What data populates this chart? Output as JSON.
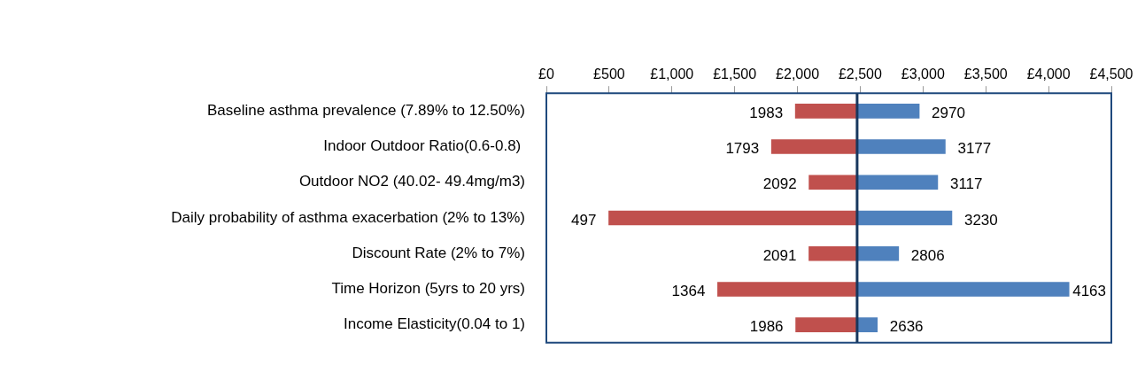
{
  "chart_data": {
    "type": "bar",
    "orientation": "horizontal",
    "categories": [
      "Baseline asthma prevalence (7.89% to 12.50%)",
      "Indoor Outdoor Ratio(0.6-0.8) ",
      "Outdoor NO2 (40.02- 49.4mg/m3)",
      "Daily probability of asthma exacerbation (2% to 13%)",
      "Discount Rate (2% to 7%)",
      "Time Horizon (5yrs to 20 yrs)",
      "Income Elasticity(0.04 to 1)"
    ],
    "series": [
      {
        "color": "#c0504d",
        "base": [
          2475,
          2475,
          2475,
          2475,
          2475,
          2475,
          2475
        ],
        "values": [
          -492,
          -682,
          -383,
          -1978,
          -384,
          -1111,
          -489
        ],
        "value_labels": [
          "1983",
          "1793",
          "2092",
          "497",
          "2091",
          "1364",
          "1986"
        ]
      },
      {
        "color": "#4f81bd",
        "base": [
          2475,
          2475,
          2475,
          2475,
          2475,
          2475,
          2475
        ],
        "values": [
          495,
          702,
          642,
          755,
          331,
          1688,
          161
        ],
        "value_labels": [
          "2970",
          "3177",
          "3117",
          "3230",
          "2806",
          "4163",
          "2636"
        ]
      }
    ],
    "xlim": [
      0,
      4500
    ],
    "xticks": [
      {
        "value": 0,
        "label": "£0"
      },
      {
        "value": 500,
        "label": "£500"
      },
      {
        "value": 1000,
        "label": "£1,000"
      },
      {
        "value": 1500,
        "label": "£1,500"
      },
      {
        "value": 2000,
        "label": "£2,000"
      },
      {
        "value": 2500,
        "label": "£2,500"
      },
      {
        "value": 3000,
        "label": "£3,000"
      },
      {
        "value": 3500,
        "label": "£3,500"
      },
      {
        "value": 4000,
        "label": "£4,000"
      },
      {
        "value": 4500,
        "label": "£4,500"
      }
    ],
    "ref_lines": [
      {
        "axis": "x",
        "value": 2475,
        "color": "#17375e"
      }
    ]
  }
}
